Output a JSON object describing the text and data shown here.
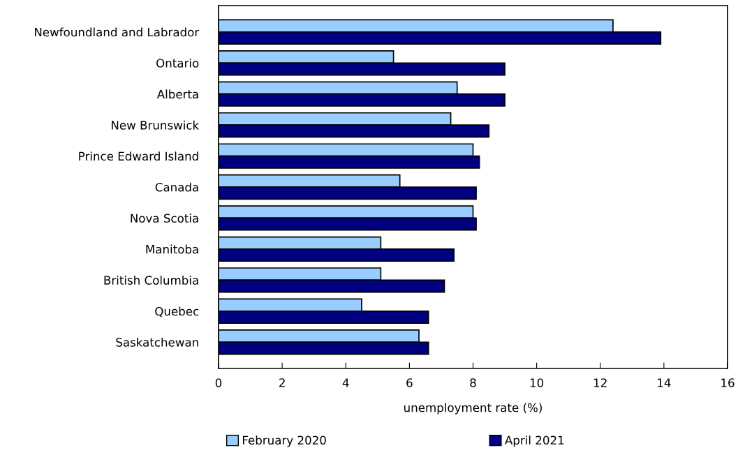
{
  "chart_data": {
    "type": "bar",
    "orientation": "horizontal",
    "xlabel": "unemployment rate (%)",
    "categories": [
      "Newfoundland and Labrador",
      "Ontario",
      "Alberta",
      "New Brunswick",
      "Prince Edward Island",
      "Canada",
      "Nova Scotia",
      "Manitoba",
      "British Columbia",
      "Quebec",
      "Saskatchewan"
    ],
    "series": [
      {
        "name": "February 2020",
        "color": "#99ccff",
        "values": [
          12.4,
          5.5,
          7.5,
          7.3,
          8.0,
          5.7,
          8.0,
          5.1,
          5.1,
          4.5,
          6.3
        ]
      },
      {
        "name": "April 2021",
        "color": "#000080",
        "values": [
          13.9,
          9.0,
          9.0,
          8.5,
          8.2,
          8.1,
          8.1,
          7.4,
          7.1,
          6.6,
          6.6
        ]
      }
    ],
    "xlim": [
      0,
      16
    ],
    "xticks": [
      0,
      2,
      4,
      6,
      8,
      10,
      12,
      14,
      16
    ],
    "grid": false,
    "legend": "bottom"
  }
}
